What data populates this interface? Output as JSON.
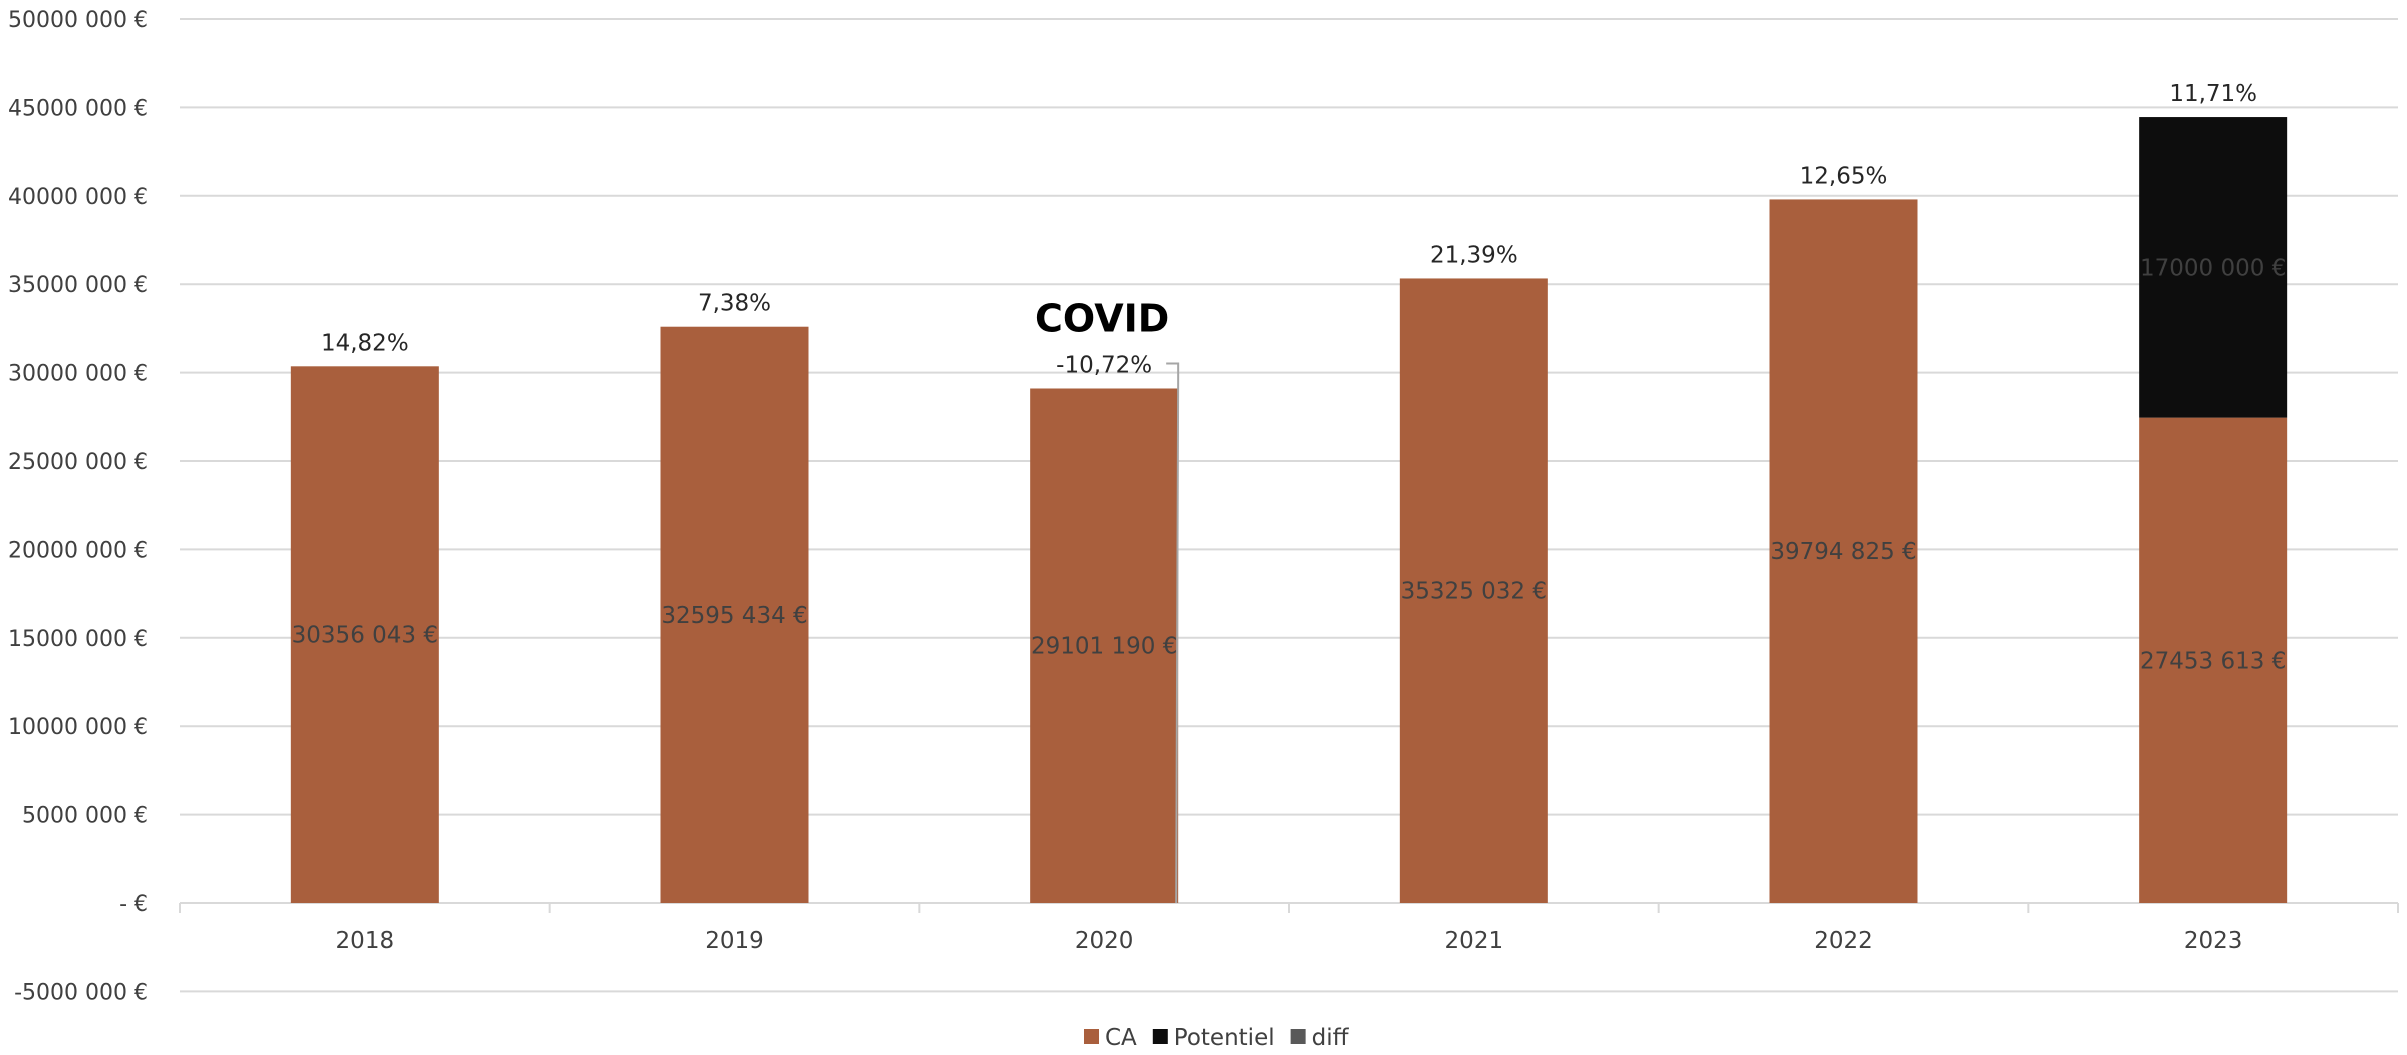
{
  "chart_data": {
    "type": "bar",
    "stacked": true,
    "categories": [
      "2018",
      "2019",
      "2020",
      "2021",
      "2022",
      "2023"
    ],
    "series": [
      {
        "name": "CA",
        "color": "#A95F3D",
        "values": [
          30356043,
          32595434,
          29101190,
          35325032,
          39794825,
          27453613
        ]
      },
      {
        "name": "Potentiel",
        "color": "#0D0D0D",
        "values": [
          0,
          0,
          0,
          0,
          0,
          17000000
        ]
      },
      {
        "name": "diff",
        "color": "#595959",
        "values": [
          0,
          0,
          0,
          0,
          0,
          0
        ]
      }
    ],
    "value_labels": {
      "CA": [
        "30356 043 €",
        "32595 434 €",
        "29101 190 €",
        "35325 032 €",
        "39794 825 €",
        "27453 613 €"
      ],
      "Potentiel": [
        "",
        "",
        "",
        "",
        "",
        "17000 000 €"
      ]
    },
    "growth_labels": [
      "14,82%",
      "7,38%",
      "-10,72%",
      "21,39%",
      "12,65%",
      "11,71%"
    ],
    "annotation": {
      "text": "COVID",
      "category": "2020"
    },
    "yticks": [
      {
        "value": 50000000,
        "label": "50000 000 €"
      },
      {
        "value": 45000000,
        "label": "45000 000 €"
      },
      {
        "value": 40000000,
        "label": "40000 000 €"
      },
      {
        "value": 35000000,
        "label": "35000 000 €"
      },
      {
        "value": 30000000,
        "label": "30000 000 €"
      },
      {
        "value": 25000000,
        "label": "25000 000 €"
      },
      {
        "value": 20000000,
        "label": "20000 000 €"
      },
      {
        "value": 15000000,
        "label": "15000 000 €"
      },
      {
        "value": 10000000,
        "label": "10000 000 €"
      },
      {
        "value": 5000000,
        "label": "5000 000 €"
      },
      {
        "value": 0,
        "label": "-   €"
      },
      {
        "value": -5000000,
        "label": "-5000 000 €"
      }
    ],
    "ylim": [
      -5000000,
      50000000
    ],
    "grid": true,
    "legend_position": "bottom-center",
    "title": "",
    "xlabel": "",
    "ylabel": ""
  }
}
